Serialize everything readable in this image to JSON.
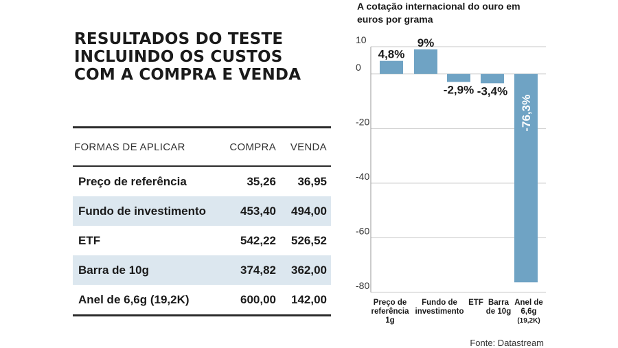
{
  "headline": [
    "RESULTADOS DO TESTE",
    "INCLUINDO OS CUSTOS",
    "COM A COMPRA E VENDA"
  ],
  "table": {
    "headers": [
      "FORMAS DE APLICAR",
      "COMPRA",
      "VENDA"
    ],
    "rows": [
      [
        "Preço de referência",
        "35,26",
        "36,95"
      ],
      [
        "Fundo de investimento",
        "453,40",
        "494,00"
      ],
      [
        "ETF",
        "542,22",
        "526,52"
      ],
      [
        "Barra de 10g",
        "374,82",
        "362,00"
      ],
      [
        "Anel de 6,6g (19,2K)",
        "600,00",
        "142,00"
      ]
    ],
    "shaded_color": "#dce7ef"
  },
  "chart_data": {
    "type": "bar",
    "title": [
      "A cotação internacional do ouro em",
      "euros por grama"
    ],
    "categories": [
      [
        "Preço de",
        "referência",
        "1g"
      ],
      [
        "Fundo de",
        "investimento"
      ],
      [
        "ETF"
      ],
      [
        "Barra",
        "de 10g"
      ],
      [
        "Anel de",
        "6,6g",
        "(19,2K)"
      ]
    ],
    "values": [
      4.8,
      9,
      -2.9,
      -3.4,
      -76.3
    ],
    "data_labels": [
      "4,8%",
      "9%",
      "-2,9%",
      "-3,4%",
      "-76,3%"
    ],
    "yticks": [
      10,
      0,
      -20,
      -40,
      -60,
      -80
    ],
    "ylim": [
      -80,
      10
    ],
    "grid": true,
    "bar_color": "#6fa3c4",
    "grid_color": "#c8c8c8"
  },
  "source": "Fonte: Datastream"
}
